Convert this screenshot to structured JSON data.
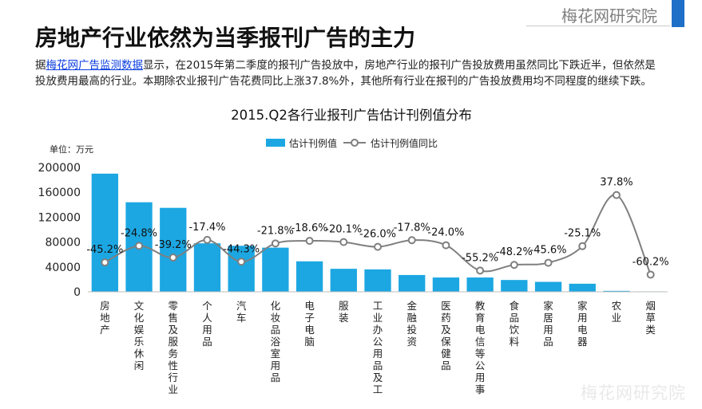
{
  "brand": "梅花网研究院",
  "page_title": "房地产行业依然为当季报刊广告的主力",
  "intro": {
    "prefix": "据",
    "link": "梅花网广告监测数据",
    "body": "显示，在2015年第二季度的报刊广告投放中，房地产行业的报刊广告投放费用虽然同比下跌近半，但依然是投放费用最高的行业。本期除农业报刊广告花费同比上涨37.8%外，其他所有行业在报刊的广告投放费用均不同程度的继续下跌。"
  },
  "watermark": "梅花网研究院",
  "colors": {
    "bar": "#1ca7e2",
    "line": "#7f7f7f",
    "marker_fill": "#ffffff"
  },
  "chart_data": {
    "type": "bar",
    "title": "2015.Q2各行业报刊广告估计刊例值分布",
    "unit_label": "单位：万元",
    "ylim": [
      0,
      200000
    ],
    "yticks": [
      "0",
      "40000",
      "80000",
      "120000",
      "160000",
      "200000"
    ],
    "ytick_values": [
      0,
      40000,
      80000,
      120000,
      160000,
      200000
    ],
    "legend_position": "top-center",
    "categories": [
      "房地产",
      "文化娱乐休闲",
      "零售及服务性行业",
      "个人用品",
      "汽车",
      "化妆品浴室用品",
      "电子电脑",
      "服装",
      "工业办公用品及工商服务",
      "金融投资",
      "医药及保健品",
      "教育电信等公用事业",
      "食品饮料",
      "家居用品",
      "家用电器",
      "农业",
      "烟草类"
    ],
    "series": [
      {
        "name": "估计刊例值",
        "type": "bar",
        "values": [
          190000,
          144000,
          135000,
          78000,
          74000,
          71000,
          49000,
          37000,
          36000,
          27000,
          23000,
          23000,
          19000,
          16000,
          13000,
          1500,
          700
        ]
      },
      {
        "name": "估计刊例值同比",
        "type": "line",
        "smooth": true,
        "values": [
          -45.2,
          -24.8,
          -39.2,
          -17.4,
          -44.3,
          -21.8,
          -18.6,
          -20.1,
          -26.0,
          -17.8,
          -24.0,
          -55.2,
          -48.2,
          -45.6,
          -25.1,
          37.8,
          -60.2
        ],
        "labels": [
          "-45.2%",
          "-24.8%",
          "-39.2%",
          "-17.4%",
          "-44.3%",
          "-21.8%",
          "-18.6%",
          "-20.1%",
          "-26.0%",
          "-17.8%",
          "-24.0%",
          "-55.2%",
          "-48.2%",
          "-45.6%",
          "-25.1%",
          "37.8%",
          "-60.2%"
        ]
      }
    ],
    "grid": false
  }
}
